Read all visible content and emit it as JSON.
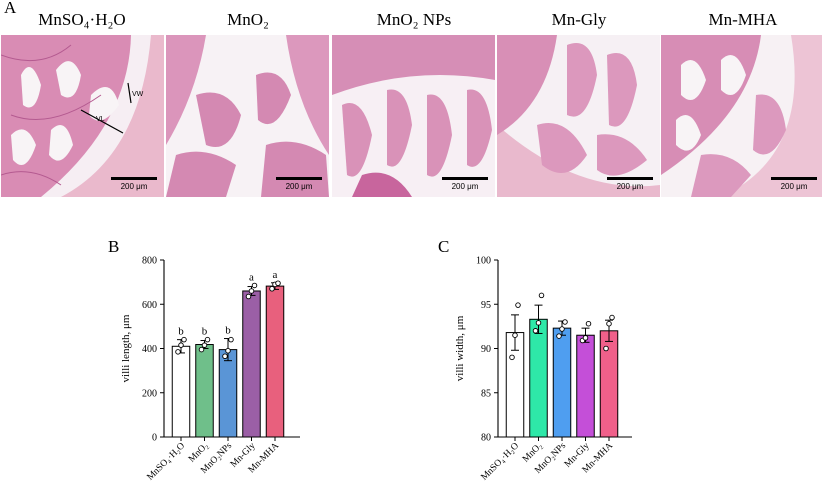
{
  "panel_a": {
    "letter": "A",
    "scale_label": "200 μm",
    "annotations": {
      "villus_length": "VL",
      "villus_width": "VW"
    },
    "images": [
      {
        "title": "MnSO₄·H₂O"
      },
      {
        "title": "MnO₂"
      },
      {
        "title": "MnO₂ NPs"
      },
      {
        "title": "Mn-Gly"
      },
      {
        "title": "Mn-MHA"
      }
    ]
  },
  "chart_data": [
    {
      "panel": "B",
      "type": "bar",
      "categories": [
        "MnSO₄·H₂O",
        "MnO₂",
        "MnO₂NPs",
        "Mn-Gly",
        "Mn-MHA"
      ],
      "values": [
        410,
        418,
        395,
        660,
        682
      ],
      "errors": [
        30,
        18,
        50,
        20,
        15
      ],
      "points": [
        [
          385,
          415,
          440
        ],
        [
          395,
          415,
          440
        ],
        [
          365,
          390,
          440
        ],
        [
          635,
          660,
          685
        ],
        [
          670,
          690,
          695
        ]
      ],
      "letters": [
        "b",
        "b",
        "b",
        "a",
        "a"
      ],
      "colors": [
        "#ffffff",
        "#6fbf8a",
        "#5a95d6",
        "#9b5fa6",
        "#e8607d"
      ],
      "ylabel": "villi length, μm",
      "ylim": [
        0,
        800
      ],
      "yticks": [
        0,
        200,
        400,
        600,
        800
      ],
      "grid": false,
      "legend": "none"
    },
    {
      "panel": "C",
      "type": "bar",
      "categories": [
        "MnSO₄·H₂O",
        "MnO₂",
        "MnO₂NPs",
        "Mn-Gly",
        "Mn-MHA"
      ],
      "values": [
        91.8,
        93.3,
        92.3,
        91.5,
        92.0
      ],
      "errors": [
        2.0,
        1.6,
        0.8,
        0.8,
        1.2
      ],
      "points": [
        [
          89.0,
          91.5,
          94.9
        ],
        [
          92.0,
          92.9,
          96.0
        ],
        [
          91.4,
          92.2,
          93.0
        ],
        [
          90.9,
          91.2,
          92.8
        ],
        [
          90.0,
          92.8,
          93.5
        ]
      ],
      "letters": [],
      "colors": [
        "#ffffff",
        "#2ee8a8",
        "#4f9ef0",
        "#c44fd8",
        "#f0608a"
      ],
      "ylabel": "villi width, μm",
      "ylim": [
        80,
        100
      ],
      "yticks": [
        80,
        85,
        90,
        95,
        100
      ],
      "grid": false,
      "legend": "none"
    }
  ]
}
